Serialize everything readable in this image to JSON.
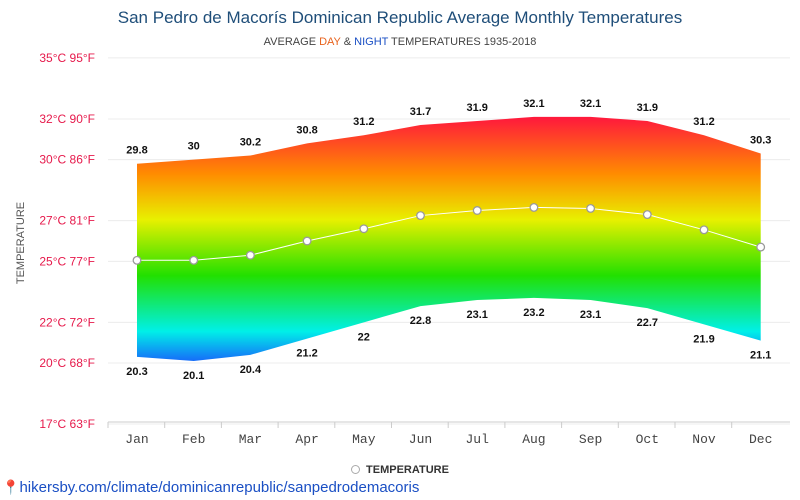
{
  "chart_data": {
    "type": "area",
    "title": "San Pedro de Macorís Dominican Republic Average Monthly Temperatures",
    "subtitle": {
      "prefix": "AVERAGE ",
      "day_word": "DAY",
      "middle": " & ",
      "night_word": "NIGHT",
      "suffix": " TEMPERATURES 1935-2018"
    },
    "ylabel": "TEMPERATURE",
    "y_ticks": [
      {
        "value": 35,
        "label": "35°C 95°F"
      },
      {
        "value": 32,
        "label": "32°C 90°F"
      },
      {
        "value": 30,
        "label": "30°C 86°F"
      },
      {
        "value": 27,
        "label": "27°C 81°F"
      },
      {
        "value": 25,
        "label": "25°C 77°F"
      },
      {
        "value": 22,
        "label": "22°C 72°F"
      },
      {
        "value": 20,
        "label": "20°C 68°F"
      },
      {
        "value": 17,
        "label": "17°C 63°F"
      }
    ],
    "ylim": [
      17.1,
      34.8
    ],
    "categories": [
      "Jan",
      "Feb",
      "Mar",
      "Apr",
      "May",
      "Jun",
      "Jul",
      "Aug",
      "Sep",
      "Oct",
      "Nov",
      "Dec"
    ],
    "day": [
      29.8,
      30,
      30.2,
      30.8,
      31.2,
      31.7,
      31.9,
      32.1,
      32.1,
      31.9,
      31.2,
      30.3
    ],
    "night": [
      20.3,
      20.1,
      20.4,
      21.2,
      22,
      22.8,
      23.1,
      23.2,
      23.1,
      22.7,
      21.9,
      21.1
    ],
    "series": [
      {
        "name": "TEMPERATURE",
        "values": [
          25.05,
          25.05,
          25.3,
          26.0,
          26.6,
          27.25,
          27.5,
          27.65,
          27.6,
          27.3,
          26.55,
          25.7
        ]
      }
    ],
    "grid": true,
    "legend": "bottom-center",
    "colors": {
      "hot": "#ff1a3c",
      "warm": "#ffb400",
      "mild": "#d8f000",
      "green": "#22e000",
      "cyan": "#00f0e8",
      "cold": "#1e3cff",
      "tick_label": "#e6194b",
      "title": "#1f4e79",
      "day_word": "#e8621c",
      "night_word": "#1a4fc4"
    }
  },
  "footer": {
    "source_url": "hikersby.com/climate/dominicanrepublic/sanpedrodemacoris"
  }
}
